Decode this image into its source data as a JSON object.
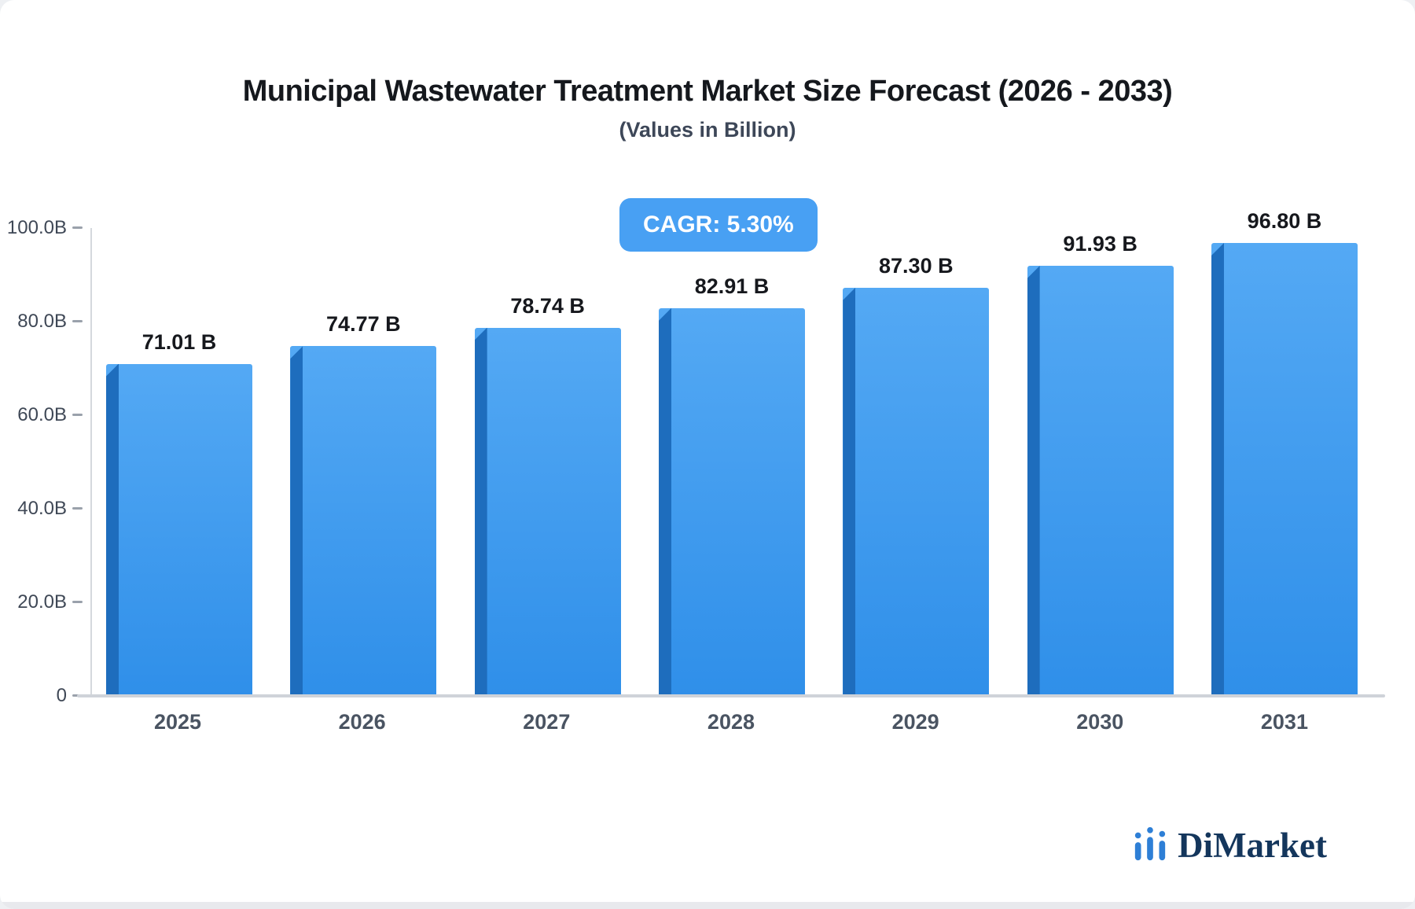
{
  "chart_data": {
    "type": "bar",
    "title": "Municipal Wastewater Treatment Market Size Forecast (2026 - 2033)",
    "subtitle": "(Values in Billion)",
    "badge": "CAGR: 5.30%",
    "categories": [
      "2025",
      "2026",
      "2027",
      "2028",
      "2029",
      "2030",
      "2031"
    ],
    "values": [
      71.01,
      74.77,
      78.74,
      82.91,
      87.3,
      91.93,
      96.8
    ],
    "value_labels": [
      "71.01 B",
      "74.77 B",
      "78.74 B",
      "82.91 B",
      "87.30 B",
      "91.93 B",
      "96.80 B"
    ],
    "xlabel": "",
    "ylabel": "",
    "ylim": [
      0,
      100
    ],
    "y_ticks": [
      {
        "label": "100.0B",
        "value": 100
      },
      {
        "label": "80.0B",
        "value": 80
      },
      {
        "label": "60.0B",
        "value": 60
      },
      {
        "label": "40.0B",
        "value": 40
      },
      {
        "label": "20.0B",
        "value": 20
      },
      {
        "label": "0",
        "value": 0
      }
    ],
    "grid": false,
    "legend": false,
    "colors": {
      "bar_top": "#54a9f4",
      "bar_bottom": "#2f8fe9",
      "bar_edge": "#1e6dbd",
      "badge_bg": "#48a0f3",
      "brand_blue": "#2e7fd6",
      "brand_text": "#14365c"
    }
  },
  "footer": {
    "brand": "DiMarket"
  }
}
